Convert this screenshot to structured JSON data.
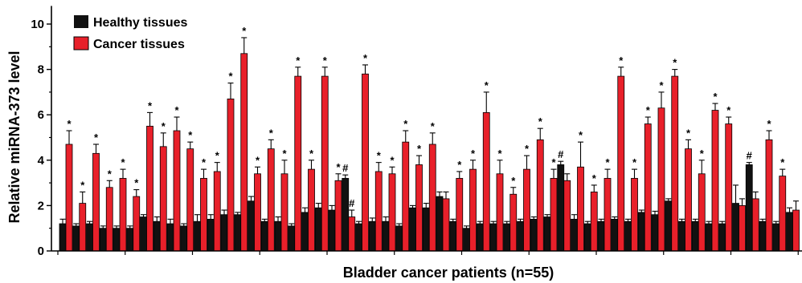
{
  "chart_data": {
    "type": "bar",
    "xlabel": "Bladder cancer patients (n=55)",
    "ylabel": "Relative miRNA-373 level",
    "ylim": [
      0,
      10.8
    ],
    "yticks": [
      0,
      2,
      4,
      6,
      8,
      10
    ],
    "grid": false,
    "legend_position": "top-left",
    "colors": {
      "healthy": "#111111",
      "cancer": "#e8202a"
    },
    "series": [
      {
        "name": "Healthy tissues",
        "values": [
          1.2,
          1.1,
          1.2,
          1.0,
          1.0,
          1.0,
          1.5,
          1.3,
          1.2,
          1.1,
          1.3,
          1.4,
          1.6,
          1.6,
          2.2,
          1.3,
          1.3,
          1.1,
          1.7,
          1.9,
          1.8,
          3.2,
          1.2,
          1.3,
          1.3,
          1.1,
          1.9,
          1.9,
          2.4,
          1.3,
          1.0,
          1.2,
          1.2,
          1.2,
          1.3,
          1.4,
          1.5,
          3.8,
          1.4,
          1.2,
          1.3,
          1.4,
          1.3,
          1.7,
          1.6,
          2.2,
          1.3,
          1.3,
          1.2,
          1.2,
          2.1,
          3.8,
          1.3,
          1.2,
          1.7
        ],
        "errors": [
          0.2,
          0.1,
          0.1,
          0.1,
          0.1,
          0.1,
          0.1,
          0.2,
          0.2,
          0.1,
          0.3,
          0.2,
          0.2,
          0.1,
          0.2,
          0.1,
          0.2,
          0.1,
          0.2,
          0.2,
          0.2,
          0.15,
          0.1,
          0.15,
          0.2,
          0.1,
          0.1,
          0.2,
          0.2,
          0.1,
          0.1,
          0.1,
          0.1,
          0.1,
          0.1,
          0.1,
          0.1,
          0.15,
          0.2,
          0.1,
          0.1,
          0.1,
          0.1,
          0.1,
          0.15,
          0.1,
          0.1,
          0.1,
          0.1,
          0.1,
          0.8,
          0.1,
          0.1,
          0.1,
          0.2
        ],
        "markers": [
          "",
          "",
          "",
          "",
          "",
          "",
          "",
          "",
          "",
          "",
          "",
          "",
          "",
          "",
          "",
          "",
          "",
          "",
          "",
          "",
          "",
          "#",
          "",
          "",
          "",
          "",
          "",
          "",
          "",
          "",
          "",
          "",
          "",
          "",
          "",
          "",
          "",
          "#",
          "",
          "",
          "",
          "",
          "",
          "",
          "",
          "",
          "",
          "",
          "",
          "",
          "",
          "#",
          "",
          "",
          ""
        ]
      },
      {
        "name": "Cancer tissues",
        "values": [
          4.7,
          2.1,
          4.3,
          2.8,
          3.2,
          2.4,
          5.5,
          4.6,
          5.3,
          4.5,
          3.2,
          3.5,
          6.7,
          8.7,
          3.4,
          4.5,
          3.4,
          7.7,
          3.6,
          7.7,
          3.1,
          1.5,
          7.8,
          3.5,
          3.4,
          4.8,
          3.8,
          4.7,
          2.3,
          3.2,
          3.6,
          6.1,
          3.4,
          2.5,
          3.6,
          4.9,
          3.2,
          3.1,
          3.7,
          2.6,
          3.2,
          7.7,
          3.2,
          5.6,
          6.3,
          7.7,
          4.5,
          3.4,
          6.2,
          5.6,
          2.0,
          2.3,
          4.9,
          3.3,
          1.8
        ],
        "errors": [
          0.6,
          0.5,
          0.4,
          0.3,
          0.4,
          0.3,
          0.6,
          0.6,
          0.6,
          0.3,
          0.4,
          0.4,
          0.7,
          0.7,
          0.3,
          0.4,
          0.6,
          0.4,
          0.4,
          0.4,
          0.3,
          0.3,
          0.4,
          0.4,
          0.3,
          0.5,
          0.4,
          0.5,
          0.3,
          0.3,
          0.4,
          0.9,
          0.6,
          0.3,
          0.6,
          0.5,
          0.4,
          0.3,
          1.1,
          0.3,
          0.4,
          0.4,
          0.4,
          0.3,
          0.7,
          0.3,
          0.4,
          0.6,
          0.3,
          0.3,
          0.3,
          0.3,
          0.4,
          0.3,
          0.4
        ],
        "markers": [
          "*",
          "*",
          "*",
          "*",
          "*",
          "*",
          "*",
          "*",
          "*",
          "*",
          "*",
          "*",
          "*",
          "*",
          "*",
          "*",
          "*",
          "*",
          "*",
          "*",
          "*",
          "#",
          "*",
          "*",
          "*",
          "*",
          "*",
          "*",
          "",
          "*",
          "*",
          "*",
          "*",
          "*",
          "*",
          "*",
          "*",
          "",
          "*",
          "*",
          "*",
          "*",
          "*",
          "*",
          "*",
          "*",
          "*",
          "*",
          "*",
          "*",
          "",
          "",
          "*",
          "*",
          ""
        ]
      }
    ]
  }
}
